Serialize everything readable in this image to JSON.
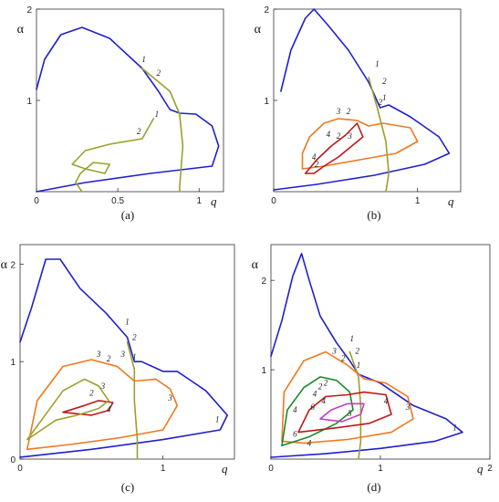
{
  "colors": {
    "1": "#1f1fd0",
    "2": "#9aa12a",
    "3": "#f07820",
    "4": "#c01818",
    "5": "#c040c0",
    "6": "#1a8a2a"
  },
  "chart_data": [
    {
      "type": "line",
      "panel_label": "(a)",
      "xlabel": "q",
      "ylabel": "α",
      "xlim": [
        0,
        1.15
      ],
      "ylim": [
        0,
        2
      ],
      "xticks": [
        "0",
        "0.5",
        "1"
      ],
      "yticks": [
        "1",
        "2"
      ],
      "series": [
        {
          "id": "1",
          "points": [
            [
              0,
              1.12
            ],
            [
              0.05,
              1.45
            ],
            [
              0.15,
              1.72
            ],
            [
              0.28,
              1.8
            ],
            [
              0.45,
              1.68
            ],
            [
              0.65,
              1.35
            ],
            [
              0.75,
              1.1
            ],
            [
              0.82,
              0.9
            ],
            [
              0.88,
              0.86
            ],
            [
              0.98,
              0.85
            ],
            [
              1.08,
              0.72
            ],
            [
              1.12,
              0.5
            ],
            [
              1.08,
              0.28
            ],
            [
              0.7,
              0.2
            ],
            [
              0.3,
              0.1
            ],
            [
              0,
              0
            ]
          ]
        },
        {
          "id": "2",
          "points": [
            [
              0.65,
              1.35
            ],
            [
              0.82,
              1.1
            ],
            [
              0.88,
              0.85
            ],
            [
              0.9,
              0.5
            ],
            [
              0.88,
              0.05
            ],
            [
              0.88,
              0
            ]
          ]
        },
        {
          "id": "2b",
          "points": [
            [
              0.72,
              0.8
            ],
            [
              0.65,
              0.58
            ],
            [
              0.45,
              0.52
            ],
            [
              0.3,
              0.45
            ],
            [
              0.22,
              0.3
            ],
            [
              0.3,
              0.25
            ],
            [
              0.42,
              0.2
            ],
            [
              0.45,
              0.3
            ],
            [
              0.35,
              0.32
            ],
            [
              0.27,
              0.2
            ],
            [
              0.24,
              0.1
            ],
            [
              0.28,
              0
            ]
          ]
        }
      ],
      "labels": [
        {
          "text": "1",
          "x": 0.66,
          "y": 1.42
        },
        {
          "text": "2",
          "x": 0.75,
          "y": 1.27
        },
        {
          "text": "1",
          "x": 0.74,
          "y": 0.82
        },
        {
          "text": "2",
          "x": 0.63,
          "y": 0.63
        }
      ]
    },
    {
      "type": "line",
      "panel_label": "(b)",
      "xlabel": "q",
      "ylabel": "α",
      "xlim": [
        0,
        1.3
      ],
      "ylim": [
        0,
        2
      ],
      "xticks": [
        "0",
        "1"
      ],
      "yticks": [
        "1",
        "2"
      ],
      "series": [
        {
          "id": "1",
          "points": [
            [
              0.05,
              1.1
            ],
            [
              0.12,
              1.55
            ],
            [
              0.22,
              1.9
            ],
            [
              0.28,
              2.0
            ],
            [
              0.38,
              1.82
            ],
            [
              0.52,
              1.55
            ],
            [
              0.66,
              1.2
            ],
            [
              0.74,
              0.92
            ],
            [
              0.8,
              0.95
            ],
            [
              0.95,
              0.82
            ],
            [
              1.15,
              0.6
            ],
            [
              1.22,
              0.42
            ],
            [
              1.05,
              0.3
            ],
            [
              0.7,
              0.18
            ],
            [
              0.3,
              0.08
            ],
            [
              0,
              0.02
            ]
          ]
        },
        {
          "id": "2",
          "points": [
            [
              0.66,
              1.25
            ],
            [
              0.72,
              0.92
            ],
            [
              0.78,
              0.55
            ],
            [
              0.8,
              0.2
            ],
            [
              0.78,
              0
            ]
          ]
        },
        {
          "id": "3",
          "points": [
            [
              0.2,
              0.42
            ],
            [
              0.25,
              0.6
            ],
            [
              0.35,
              0.75
            ],
            [
              0.45,
              0.8
            ],
            [
              0.58,
              0.78
            ],
            [
              0.66,
              0.72
            ],
            [
              0.76,
              0.75
            ],
            [
              0.95,
              0.7
            ],
            [
              1.0,
              0.55
            ],
            [
              0.85,
              0.42
            ],
            [
              0.6,
              0.35
            ],
            [
              0.35,
              0.28
            ],
            [
              0.2,
              0.25
            ],
            [
              0.2,
              0.42
            ]
          ]
        },
        {
          "id": "4",
          "points": [
            [
              0.22,
              0.2
            ],
            [
              0.3,
              0.35
            ],
            [
              0.4,
              0.5
            ],
            [
              0.5,
              0.62
            ],
            [
              0.58,
              0.75
            ],
            [
              0.62,
              0.6
            ],
            [
              0.45,
              0.38
            ],
            [
              0.35,
              0.28
            ],
            [
              0.28,
              0.2
            ],
            [
              0.22,
              0.2
            ]
          ]
        }
      ],
      "labels": [
        {
          "text": "1",
          "x": 0.72,
          "y": 1.37
        },
        {
          "text": "2",
          "x": 0.77,
          "y": 1.18
        },
        {
          "text": "1",
          "x": 0.77,
          "y": 1.0
        },
        {
          "text": "2",
          "x": 0.74,
          "y": 0.95
        },
        {
          "text": "3",
          "x": 0.45,
          "y": 0.85
        },
        {
          "text": "2",
          "x": 0.52,
          "y": 0.85
        },
        {
          "text": "4",
          "x": 0.38,
          "y": 0.6
        },
        {
          "text": "2",
          "x": 0.45,
          "y": 0.58
        },
        {
          "text": "3",
          "x": 0.53,
          "y": 0.58
        },
        {
          "text": "4",
          "x": 0.28,
          "y": 0.35
        },
        {
          "text": "2",
          "x": 0.3,
          "y": 0.27
        }
      ]
    },
    {
      "type": "line",
      "panel_label": "(c)",
      "xlabel": "q",
      "ylabel": "α",
      "xlim": [
        0,
        1.5
      ],
      "ylim": [
        0,
        2.2
      ],
      "xticks": [
        "0",
        "1"
      ],
      "yticks": [
        "0",
        "1",
        "2"
      ],
      "series": [
        {
          "id": "1",
          "points": [
            [
              0,
              1.2
            ],
            [
              0.08,
              1.55
            ],
            [
              0.18,
              2.05
            ],
            [
              0.28,
              2.05
            ],
            [
              0.42,
              1.75
            ],
            [
              0.6,
              1.5
            ],
            [
              0.75,
              1.25
            ],
            [
              0.8,
              1.0
            ],
            [
              0.85,
              1.0
            ],
            [
              1.0,
              0.9
            ],
            [
              1.1,
              0.9
            ],
            [
              1.2,
              0.8
            ],
            [
              1.3,
              0.7
            ],
            [
              1.45,
              0.45
            ],
            [
              1.4,
              0.3
            ],
            [
              1.0,
              0.2
            ],
            [
              0.5,
              0.1
            ],
            [
              0,
              0.02
            ]
          ]
        },
        {
          "id": "2",
          "points": [
            [
              0.75,
              1.2
            ],
            [
              0.8,
              0.92
            ],
            [
              0.8,
              0.6
            ],
            [
              0.82,
              0.2
            ],
            [
              0.82,
              0
            ]
          ]
        },
        {
          "id": "3",
          "points": [
            [
              0.05,
              0.1
            ],
            [
              0.12,
              0.6
            ],
            [
              0.3,
              0.95
            ],
            [
              0.5,
              1.02
            ],
            [
              0.68,
              0.95
            ],
            [
              0.8,
              0.8
            ],
            [
              0.95,
              0.82
            ],
            [
              1.05,
              0.72
            ],
            [
              1.1,
              0.55
            ],
            [
              1.0,
              0.3
            ],
            [
              0.7,
              0.22
            ],
            [
              0.35,
              0.15
            ],
            [
              0.05,
              0.1
            ]
          ]
        },
        {
          "id": "4",
          "points": [
            [
              0.3,
              0.48
            ],
            [
              0.45,
              0.55
            ],
            [
              0.55,
              0.6
            ],
            [
              0.65,
              0.58
            ],
            [
              0.62,
              0.5
            ],
            [
              0.5,
              0.45
            ],
            [
              0.3,
              0.48
            ]
          ]
        },
        {
          "id": "2b",
          "points": [
            [
              0.05,
              0.2
            ],
            [
              0.15,
              0.4
            ],
            [
              0.3,
              0.7
            ],
            [
              0.45,
              0.82
            ],
            [
              0.55,
              0.75
            ],
            [
              0.62,
              0.6
            ],
            [
              0.55,
              0.52
            ],
            [
              0.4,
              0.45
            ],
            [
              0.25,
              0.4
            ],
            [
              0.15,
              0.3
            ],
            [
              0.05,
              0.2
            ]
          ]
        }
      ],
      "labels": [
        {
          "text": "1",
          "x": 0.75,
          "y": 1.38
        },
        {
          "text": "2",
          "x": 0.8,
          "y": 1.22
        },
        {
          "text": "1",
          "x": 0.8,
          "y": 1.02
        },
        {
          "text": "3",
          "x": 0.55,
          "y": 1.05
        },
        {
          "text": "2",
          "x": 0.62,
          "y": 1.0
        },
        {
          "text": "3",
          "x": 0.72,
          "y": 1.05
        },
        {
          "text": "2",
          "x": 0.5,
          "y": 0.65
        },
        {
          "text": "3",
          "x": 0.58,
          "y": 0.72
        },
        {
          "text": "4",
          "x": 0.62,
          "y": 0.48
        },
        {
          "text": "3",
          "x": 1.05,
          "y": 0.6
        },
        {
          "text": "1",
          "x": 1.38,
          "y": 0.38
        }
      ]
    },
    {
      "type": "line",
      "panel_label": "(d)",
      "xlabel": "q",
      "ylabel": "α",
      "xlim": [
        0,
        2
      ],
      "ylim": [
        0,
        2.4
      ],
      "xticks": [
        "0",
        "1",
        "2"
      ],
      "yticks": [
        "1",
        "2"
      ],
      "series": [
        {
          "id": "1",
          "points": [
            [
              0,
              1.15
            ],
            [
              0.1,
              1.55
            ],
            [
              0.2,
              2.05
            ],
            [
              0.28,
              2.3
            ],
            [
              0.35,
              2.0
            ],
            [
              0.45,
              1.6
            ],
            [
              0.6,
              1.3
            ],
            [
              0.72,
              1.1
            ],
            [
              0.8,
              0.95
            ],
            [
              1.0,
              0.85
            ],
            [
              1.3,
              0.6
            ],
            [
              1.6,
              0.45
            ],
            [
              1.75,
              0.3
            ],
            [
              1.5,
              0.2
            ],
            [
              1.0,
              0.12
            ],
            [
              0.5,
              0.06
            ],
            [
              0,
              0.02
            ]
          ]
        },
        {
          "id": "2",
          "points": [
            [
              0.72,
              1.2
            ],
            [
              0.8,
              0.92
            ],
            [
              0.82,
              0.6
            ],
            [
              0.82,
              0.2
            ],
            [
              0.8,
              0
            ]
          ]
        },
        {
          "id": "3",
          "points": [
            [
              0.1,
              0.2
            ],
            [
              0.12,
              0.75
            ],
            [
              0.3,
              1.1
            ],
            [
              0.5,
              1.2
            ],
            [
              0.7,
              1.05
            ],
            [
              0.85,
              0.9
            ],
            [
              1.05,
              0.85
            ],
            [
              1.25,
              0.7
            ],
            [
              1.3,
              0.45
            ],
            [
              1.1,
              0.3
            ],
            [
              0.7,
              0.22
            ],
            [
              0.3,
              0.18
            ],
            [
              0.1,
              0.2
            ]
          ]
        },
        {
          "id": "6",
          "points": [
            [
              0.1,
              0.15
            ],
            [
              0.15,
              0.55
            ],
            [
              0.3,
              0.8
            ],
            [
              0.45,
              0.92
            ],
            [
              0.6,
              0.88
            ],
            [
              0.72,
              0.75
            ],
            [
              0.75,
              0.55
            ],
            [
              0.6,
              0.4
            ],
            [
              0.35,
              0.25
            ],
            [
              0.1,
              0.15
            ]
          ]
        },
        {
          "id": "4",
          "points": [
            [
              0.25,
              0.3
            ],
            [
              0.35,
              0.55
            ],
            [
              0.5,
              0.7
            ],
            [
              0.7,
              0.72
            ],
            [
              0.85,
              0.75
            ],
            [
              1.05,
              0.72
            ],
            [
              1.1,
              0.5
            ],
            [
              0.9,
              0.4
            ],
            [
              0.6,
              0.35
            ],
            [
              0.25,
              0.3
            ]
          ]
        },
        {
          "id": "5",
          "points": [
            [
              0.45,
              0.45
            ],
            [
              0.55,
              0.55
            ],
            [
              0.7,
              0.62
            ],
            [
              0.85,
              0.62
            ],
            [
              0.82,
              0.5
            ],
            [
              0.65,
              0.42
            ],
            [
              0.45,
              0.45
            ]
          ]
        }
      ],
      "labels": [
        {
          "text": "1",
          "x": 0.74,
          "y": 1.32
        },
        {
          "text": "2",
          "x": 0.79,
          "y": 1.18
        },
        {
          "text": "1",
          "x": 0.8,
          "y": 1.02
        },
        {
          "text": "3",
          "x": 0.58,
          "y": 1.18
        },
        {
          "text": "2",
          "x": 0.66,
          "y": 1.1
        },
        {
          "text": "2",
          "x": 0.45,
          "y": 0.78
        },
        {
          "text": "4",
          "x": 0.4,
          "y": 0.7
        },
        {
          "text": "2",
          "x": 0.5,
          "y": 0.82
        },
        {
          "text": "4",
          "x": 0.48,
          "y": 0.62
        },
        {
          "text": "6",
          "x": 0.38,
          "y": 0.55
        },
        {
          "text": "4",
          "x": 0.22,
          "y": 0.52
        },
        {
          "text": "6",
          "x": 0.22,
          "y": 0.25
        },
        {
          "text": "4",
          "x": 0.35,
          "y": 0.15
        },
        {
          "text": "5",
          "x": 0.72,
          "y": 0.48
        },
        {
          "text": "4",
          "x": 1.05,
          "y": 0.62
        },
        {
          "text": "3",
          "x": 1.25,
          "y": 0.55
        },
        {
          "text": "1",
          "x": 1.68,
          "y": 0.32
        }
      ]
    }
  ]
}
